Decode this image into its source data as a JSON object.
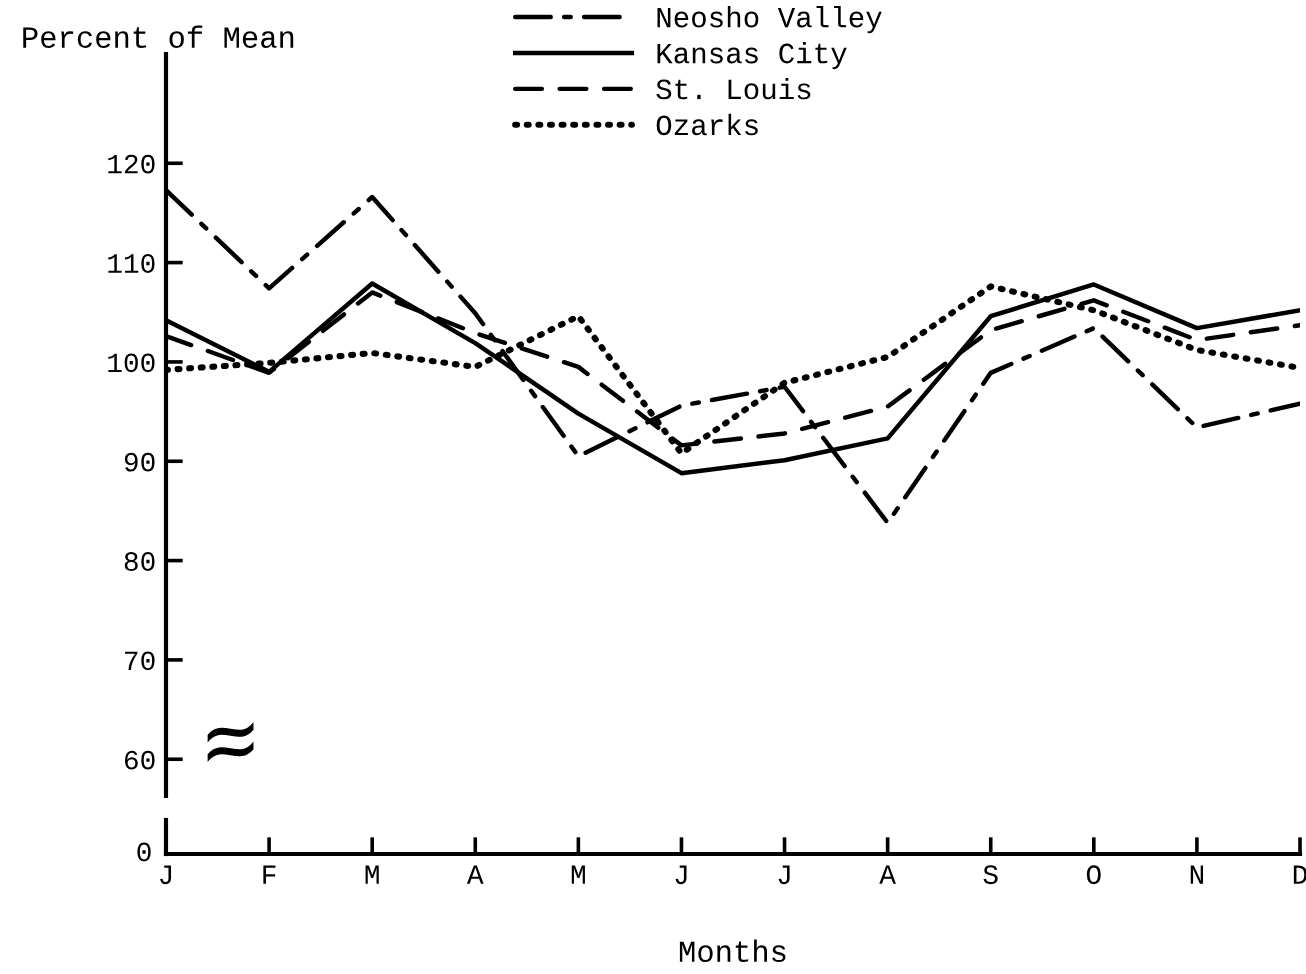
{
  "chart_data": [
    {
      "type": "line",
      "ylabel": "Percent of Mean",
      "categories": [
        null,
        null,
        null,
        null,
        null,
        null,
        null,
        null,
        null,
        null,
        null,
        null
      ],
      "series": [
        {
          "name": "Neosho Valley",
          "color": "#000000",
          "line_style": "dashdot",
          "values": [
            117.3,
            107.4,
            116.6,
            104.9,
            90.5,
            95.6,
            97.5,
            83.8,
            98.9,
            103.4,
            93.4,
            95.8
          ]
        },
        {
          "name": "Kansas City",
          "color": "#000000",
          "line_style": "solid",
          "values": [
            104.2,
            99.0,
            107.9,
            101.9,
            94.8,
            88.8,
            90.1,
            92.3,
            104.6,
            107.8,
            103.4,
            105.2
          ]
        },
        {
          "name": "St. Louis",
          "color": "#000000",
          "line_style": "dashed",
          "values": [
            102.6,
            98.9,
            107.0,
            102.9,
            99.5,
            91.6,
            92.8,
            95.5,
            103.2,
            106.2,
            102.2,
            103.7
          ]
        },
        {
          "name": "Ozarks",
          "color": "#000000",
          "line_style": "dotted",
          "values": [
            99.2,
            99.9,
            100.9,
            99.5,
            104.6,
            90.8,
            97.9,
            100.5,
            107.6,
            105.2,
            101.2,
            99.4
          ]
        }
      ],
      "ylim": [
        56.3,
        131
      ],
      "yticks": [
        60,
        70,
        80,
        90,
        100,
        110,
        120
      ],
      "tick_labels": "y",
      "grid": false,
      "legend": "top",
      "marker": "none"
    },
    {
      "type": "other",
      "xlabel": "Months",
      "categories": [
        "J",
        "F",
        "M",
        "A",
        "M",
        "J",
        "J",
        "A",
        "S",
        "O",
        "N",
        "D"
      ],
      "annotations": [
        "0"
      ]
    }
  ]
}
